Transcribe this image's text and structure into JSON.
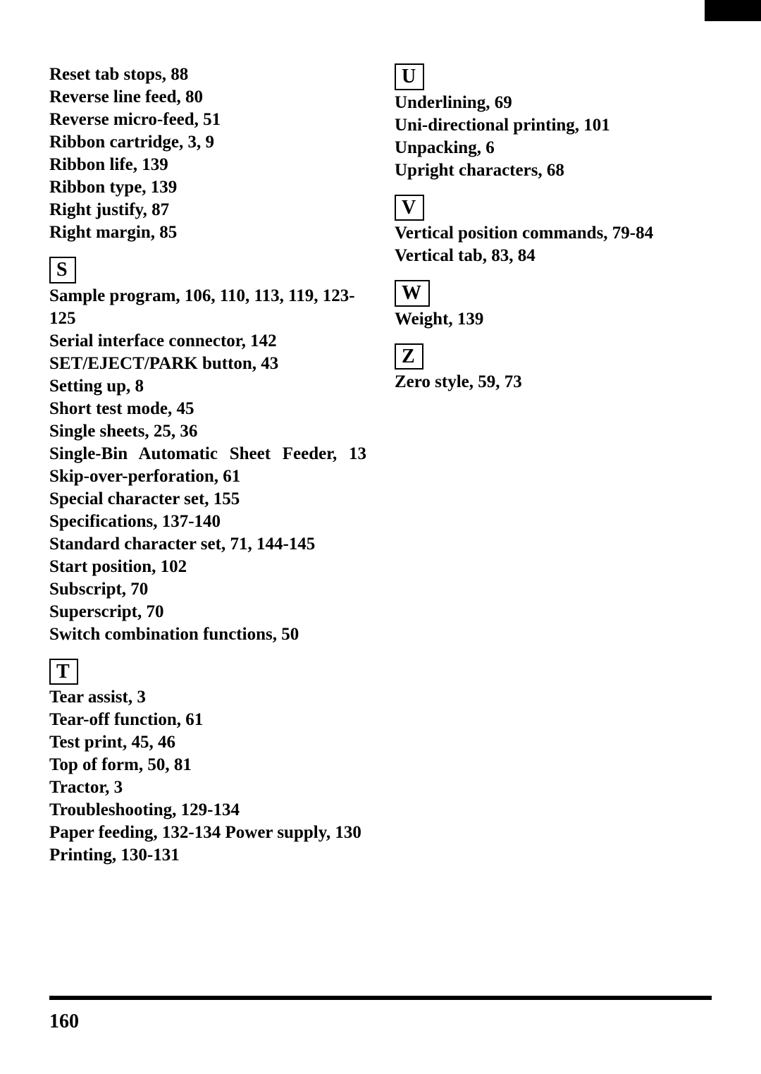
{
  "page_number": "160",
  "left_col": {
    "r_entries": [
      "Reset tab stops, 88",
      "Reverse line feed, 80",
      "Reverse micro-feed, 51",
      "Ribbon cartridge, 3, 9",
      "Ribbon life, 139",
      "Ribbon type, 139",
      "Right justify, 87",
      "Right margin, 85"
    ],
    "s_letter": "S",
    "s_entries": [
      "Sample program, 106, 110, 113, 119, 123-125",
      "Serial interface connector, 142",
      "SET/EJECT/PARK button, 43",
      "Setting up, 8",
      "Short test mode, 45",
      "Single sheets, 25, 36",
      "Single-Bin Automatic Sheet Feeder, 13",
      "Skip-over-perforation, 61",
      "Special character set, 155",
      "Specifications, 137-140",
      "Standard character set, 71, 144-145",
      "Start position, 102",
      "Subscript, 70",
      "Superscript, 70",
      "Switch combination functions, 50"
    ],
    "t_letter": "T",
    "t_entries": [
      "Tear assist, 3",
      "Tear-off function, 61",
      "Test print, 45, 46",
      "Top of form, 50, 81",
      "Tractor, 3",
      "Troubleshooting, 129-134"
    ],
    "t_sub": [
      "Paper feeding, 132-134",
      "Power supply, 130",
      "Printing, 130-131"
    ]
  },
  "right_col": {
    "u_letter": "U",
    "u_entries": [
      "Underlining, 69",
      "Uni-directional printing, 101",
      "Unpacking, 6",
      "Upright characters, 68"
    ],
    "v_letter": "V",
    "v_entries": [
      "Vertical position commands, 79-84",
      "Vertical tab, 83, 84"
    ],
    "w_letter": "W",
    "w_entries": [
      "Weight, 139"
    ],
    "z_letter": "Z",
    "z_entries": [
      "Zero style, 59, 73"
    ]
  }
}
